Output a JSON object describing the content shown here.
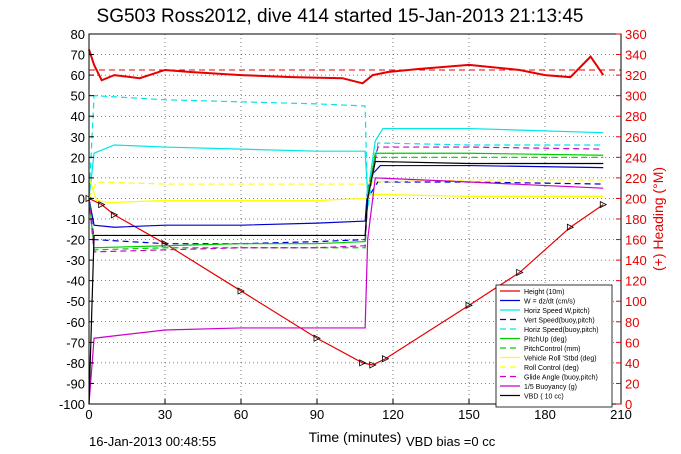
{
  "title": "SG503 Ross2012, dive 414 started 15-Jan-2013 21:13:45",
  "footer": {
    "left": "16-Jan-2013 00:48:55",
    "right": "VBD bias =0 cc"
  },
  "colors": {
    "red": "#e60000",
    "blue": "#0000d0",
    "cyan": "#00e5e5",
    "green": "#00cc00",
    "yellow": "#ffff00",
    "magenta": "#cc00cc",
    "black": "#000000"
  },
  "chart_data": {
    "type": "line",
    "xlabel": "Time (minutes)",
    "ylabel_left": "",
    "ylabel_right": "(+) Heading (°M)",
    "xlim": [
      0,
      210
    ],
    "ylim_left": [
      -100,
      80
    ],
    "ylim_right": [
      0,
      360
    ],
    "xticks": [
      "0",
      "30",
      "60",
      "90",
      "120",
      "150",
      "180",
      "210"
    ],
    "yticks_left": [
      "-100",
      "-90",
      "-80",
      "-70",
      "-60",
      "-50",
      "-40",
      "-30",
      "-20",
      "-10",
      "0",
      "10",
      "20",
      "30",
      "40",
      "50",
      "60",
      "70",
      "80"
    ],
    "yticks_right": [
      "0",
      "20",
      "40",
      "60",
      "80",
      "100",
      "120",
      "140",
      "160",
      "180",
      "200",
      "220",
      "240",
      "260",
      "280",
      "300",
      "320",
      "340",
      "360"
    ],
    "grid": true,
    "legend_position": "bottom-right",
    "series": [
      {
        "name": "Height (10m)",
        "color": "#e60000",
        "style": "solid",
        "marker": "triangle",
        "x": [
          0,
          5,
          10,
          30,
          60,
          90,
          108,
          112,
          117,
          150,
          170,
          190,
          203
        ],
        "y": [
          0,
          -3,
          -8,
          -22,
          -45,
          -68,
          -80,
          -81,
          -78,
          -52,
          -36,
          -14,
          -3
        ]
      },
      {
        "name": "W = dz/dt (cm/s)",
        "color": "#0000d0",
        "style": "solid",
        "x": [
          0,
          2,
          10,
          30,
          60,
          90,
          109,
          110,
          112,
          115,
          150,
          203
        ],
        "y": [
          0,
          -13,
          -14,
          -13,
          -13,
          -12,
          -11,
          5,
          12,
          16,
          16,
          15
        ]
      },
      {
        "name": "Horiz Speed W,pitch)",
        "color": "#00e5e5",
        "style": "solid",
        "x": [
          0,
          2,
          10,
          30,
          60,
          90,
          109,
          110,
          113,
          116,
          150,
          203
        ],
        "y": [
          0,
          22,
          26,
          25,
          24,
          23,
          23,
          2,
          28,
          34,
          34,
          32
        ]
      },
      {
        "name": "Vert Speed(buoy,pitch)",
        "color": "#0000d0",
        "style": "dashed",
        "x": [
          0,
          2,
          30,
          60,
          90,
          109,
          110,
          114,
          150,
          203
        ],
        "y": [
          0,
          -20,
          -22,
          -22,
          -21,
          -20,
          0,
          8,
          8,
          7
        ]
      },
      {
        "name": "Horiz Speed(buoy,pitch)",
        "color": "#00e5e5",
        "style": "dashed",
        "x": [
          0,
          2,
          30,
          60,
          90,
          109,
          110,
          114,
          150,
          203
        ],
        "y": [
          0,
          50,
          48,
          47,
          46,
          45,
          -5,
          27,
          26,
          26
        ]
      },
      {
        "name": "PitchUp (deg)",
        "color": "#00cc00",
        "style": "solid",
        "x": [
          0,
          2,
          30,
          60,
          90,
          109,
          110,
          113,
          150,
          203
        ],
        "y": [
          0,
          -24,
          -23,
          -22,
          -22,
          -21,
          0,
          22,
          22,
          21
        ]
      },
      {
        "name": "PitchControl (mm)",
        "color": "#00cc00",
        "style": "dashed",
        "x": [
          0,
          2,
          30,
          60,
          90,
          109,
          110,
          113,
          150,
          203
        ],
        "y": [
          0,
          -25,
          -24,
          -24,
          -24,
          -24,
          2,
          20,
          20,
          20
        ]
      },
      {
        "name": "Vehicle Roll 'Stbd (deg)",
        "color": "#ffff00",
        "style": "solid",
        "x": [
          0,
          3,
          8,
          30,
          60,
          90,
          109,
          112,
          150,
          170,
          203
        ],
        "y": [
          10,
          -1,
          -2,
          -1,
          -1,
          -1,
          0,
          2,
          1,
          1,
          1
        ]
      },
      {
        "name": "Roll Control (deg)",
        "color": "#ffff00",
        "style": "dashed",
        "x": [
          0,
          3,
          30,
          60,
          90,
          109,
          112,
          150,
          203
        ],
        "y": [
          0,
          8,
          7,
          7,
          7,
          7,
          8,
          9,
          9
        ]
      },
      {
        "name": "Glide Angle (buoy,pitch)",
        "color": "#cc00cc",
        "style": "dashed",
        "x": [
          0,
          2,
          30,
          60,
          90,
          109,
          110,
          114,
          150,
          203
        ],
        "y": [
          0,
          -26,
          -25,
          -24,
          -24,
          -23,
          0,
          25,
          25,
          24
        ]
      },
      {
        "name": "1/5 Buoyancy (g)",
        "color": "#cc00cc",
        "style": "solid",
        "x": [
          0,
          2,
          30,
          60,
          90,
          109,
          110,
          113,
          150,
          203
        ],
        "y": [
          -100,
          -68,
          -64,
          -63,
          -63,
          -63,
          -20,
          10,
          8,
          5
        ]
      },
      {
        "name": "VBD ( 10 cc)",
        "color": "#000000",
        "style": "solid",
        "x": [
          0,
          2,
          30,
          60,
          90,
          109,
          110,
          113,
          150,
          203
        ],
        "y": [
          -100,
          -18,
          -18,
          -18,
          -18,
          -18,
          0,
          18,
          17,
          17
        ]
      }
    ],
    "heading_series": {
      "name": "Heading",
      "color": "#e60000",
      "style": "solid",
      "axis": "right",
      "x": [
        0,
        2,
        5,
        10,
        20,
        30,
        40,
        60,
        80,
        100,
        108,
        112,
        118,
        130,
        150,
        170,
        180,
        190,
        198,
        203
      ],
      "y": [
        345,
        330,
        315,
        320,
        317,
        325,
        323,
        320,
        318,
        317,
        312,
        320,
        323,
        326,
        330,
        325,
        320,
        318,
        338,
        320
      ]
    },
    "heading_reference": {
      "color": "#e60000",
      "style": "dashed",
      "axis": "right",
      "value": 325
    }
  }
}
